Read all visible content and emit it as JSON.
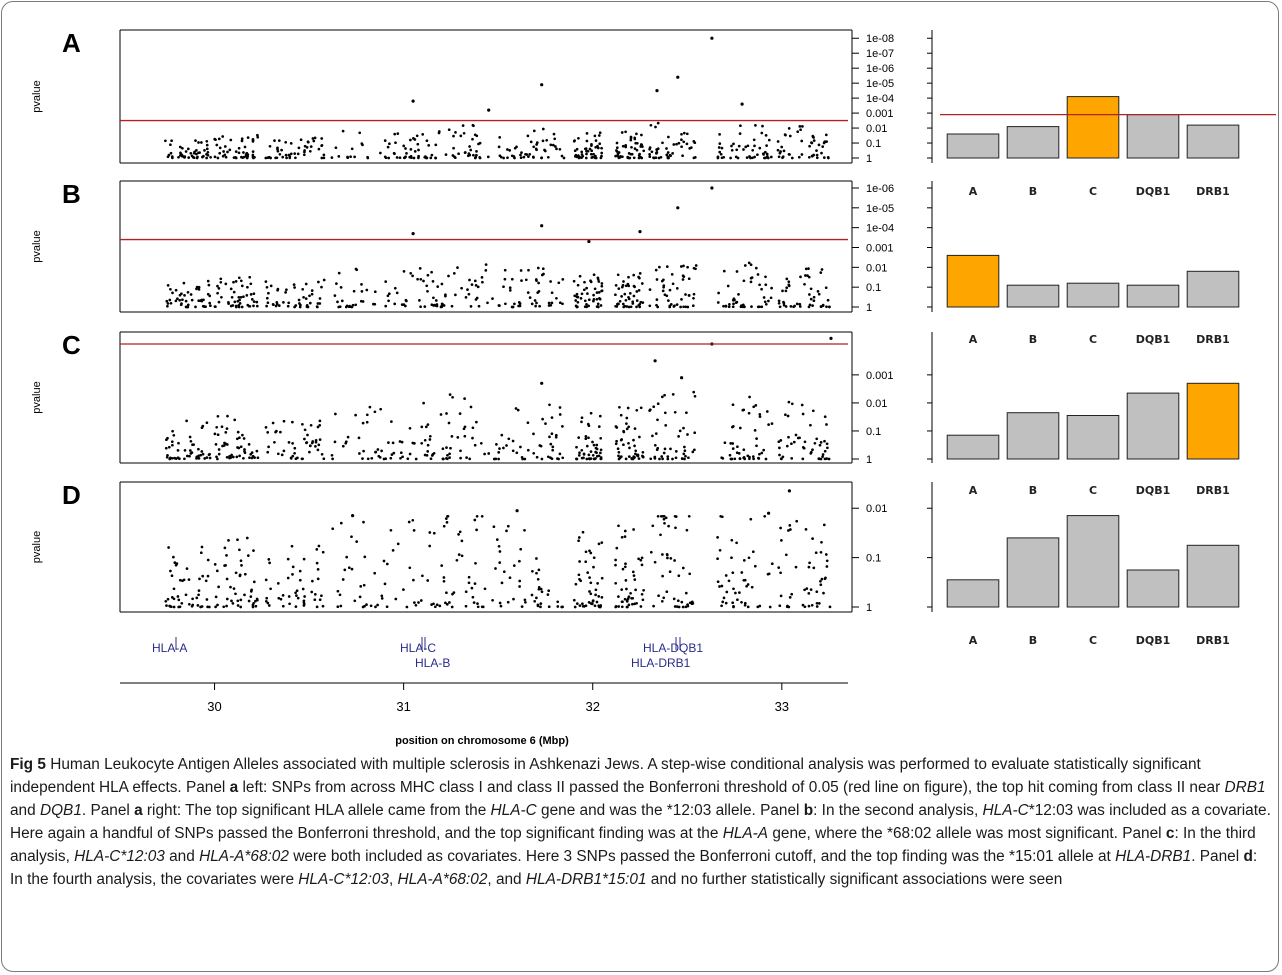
{
  "figure": {
    "y_axis_label": "pvalue",
    "x_axis_label": "position on chromosome 6 (Mbp)",
    "x_ticks": [
      30,
      31,
      32,
      33
    ],
    "colors": {
      "highlight": "#ffa500",
      "bar": "#c0c0c0",
      "threshold": "#b22222",
      "points": "#000000",
      "genes": "#2b2b8c"
    },
    "genes": [
      {
        "name": "HLA-A",
        "pos": 29.91
      },
      {
        "name": "HLA-C",
        "pos": 31.24
      },
      {
        "name": "HLA-B",
        "pos": 31.32
      },
      {
        "name": "HLA-DQB1",
        "pos": 32.63
      },
      {
        "name": "HLA-DRB1",
        "pos": 32.55
      }
    ]
  },
  "chart_data": [
    {
      "panel": "A",
      "type": "scatter",
      "title": "A",
      "ylabel": "pvalue",
      "y_scale": "log",
      "y_ticks": [
        "1e-08",
        "1e-07",
        "1e-06",
        "1e-05",
        "1e-04",
        "0.001",
        "0.01",
        "0.1",
        "1"
      ],
      "y_ticks_exp": [
        8,
        7,
        6,
        5,
        4,
        3,
        2,
        1,
        0
      ],
      "threshold_neglog10": 2.5,
      "xlim": [
        29.5,
        33.35
      ],
      "ylim_neglog10": [
        0,
        8.15
      ],
      "bar_chart": {
        "type": "bar",
        "categories": [
          "A",
          "B",
          "C",
          "DQB1",
          "DRB1"
        ],
        "values_neglog10": [
          1.6,
          2.1,
          4.1,
          2.9,
          2.2
        ],
        "highlight": "C",
        "threshold_neglog10": 2.9
      }
    },
    {
      "panel": "B",
      "type": "scatter",
      "title": "B",
      "ylabel": "pvalue",
      "y_scale": "log",
      "y_ticks": [
        "1e-06",
        "1e-05",
        "1e-04",
        "0.001",
        "0.01",
        "0.1",
        "1"
      ],
      "y_ticks_exp": [
        6,
        5,
        4,
        3,
        2,
        1,
        0
      ],
      "threshold_neglog10": 3.4,
      "xlim": [
        29.5,
        33.35
      ],
      "ylim_neglog10": [
        0,
        6.1
      ],
      "bar_chart": {
        "type": "bar",
        "categories": [
          "A",
          "B",
          "C",
          "DQB1",
          "DRB1"
        ],
        "values_neglog10": [
          2.6,
          1.1,
          1.2,
          1.1,
          1.8
        ],
        "highlight": "A"
      }
    },
    {
      "panel": "C",
      "type": "scatter",
      "title": "C",
      "ylabel": "pvalue",
      "y_scale": "log",
      "y_ticks": [
        "0.001",
        "0.01",
        "0.1",
        "1"
      ],
      "y_ticks_exp": [
        3,
        2,
        1,
        0
      ],
      "threshold_neglog10": 4.1,
      "xlim": [
        29.5,
        33.35
      ],
      "ylim_neglog10": [
        0,
        4.35
      ],
      "bar_chart": {
        "type": "bar",
        "categories": [
          "A",
          "B",
          "C",
          "DQB1",
          "DRB1"
        ],
        "values_neglog10": [
          0.85,
          1.65,
          1.55,
          2.35,
          2.7
        ],
        "highlight": "DRB1"
      }
    },
    {
      "panel": "D",
      "type": "scatter",
      "title": "D",
      "ylabel": "pvalue",
      "y_scale": "log",
      "y_ticks": [
        "0.01",
        "0.1",
        "1"
      ],
      "y_ticks_exp": [
        2,
        1,
        0
      ],
      "xlim": [
        29.5,
        33.35
      ],
      "ylim_neglog10": [
        0,
        2.45
      ],
      "bar_chart": {
        "type": "bar",
        "categories": [
          "A",
          "B",
          "C",
          "DQB1",
          "DRB1"
        ],
        "values_neglog10": [
          0.55,
          1.4,
          1.85,
          0.75,
          1.25
        ]
      }
    }
  ],
  "caption": {
    "label": "Fig 5",
    "s1": " Human Leukocyte Antigen Alleles associated with multiple sclerosis in Ashkenazi Jews. A step-wise conditional analysis was performed to evaluate statistically significant independent HLA effects. Panel ",
    "pa": "a",
    "s2": " left: SNPs from across MHC class I and class II passed the Bonferroni threshold of 0.05 (red line on figure), the top hit coming from class II near ",
    "g_drb1": "DRB1",
    "s3": " and ",
    "g_dqb1": "DQB1",
    "s4": ". Panel ",
    "pa2": "a",
    "s5": " right: The top significant HLA allele came from the ",
    "g_hlac": "HLA-C",
    "s6": " gene and was the *12:03 allele. Panel ",
    "pb": "b",
    "s7": ": In the second analysis, ",
    "g_hlac2": "HLA-C",
    "s8": "*12:03 was included as a covariate. Here again a handful of SNPs passed the Bonferroni threshold, and the top significant finding was at the ",
    "g_hlaa": "HLA-A",
    "s9": " gene, where the *68:02 allele was most significant. Panel ",
    "pc": "c",
    "s10": ": In the third analysis, ",
    "g_c1203": "HLA-C*12:03",
    "s11": " and ",
    "g_a6802": "HLA-A*68:02",
    "s12": " were both included as covariates. Here 3 SNPs passed the Bonferroni cutoff, and the top finding was the *15:01 allele at ",
    "g_hladrb1": "HLA-DRB1",
    "s13": ". Panel ",
    "pd": "d",
    "s14": ": In the fourth analysis, the covariates were ",
    "g_c1203b": "HLA-C*12:03",
    "s15": ", ",
    "g_a6802b": "HLA-A*68:02",
    "s16": ", and ",
    "g_drb1501": "HLA-DRB1*15:01",
    "s17": " and no further statistically significant associations were seen"
  }
}
